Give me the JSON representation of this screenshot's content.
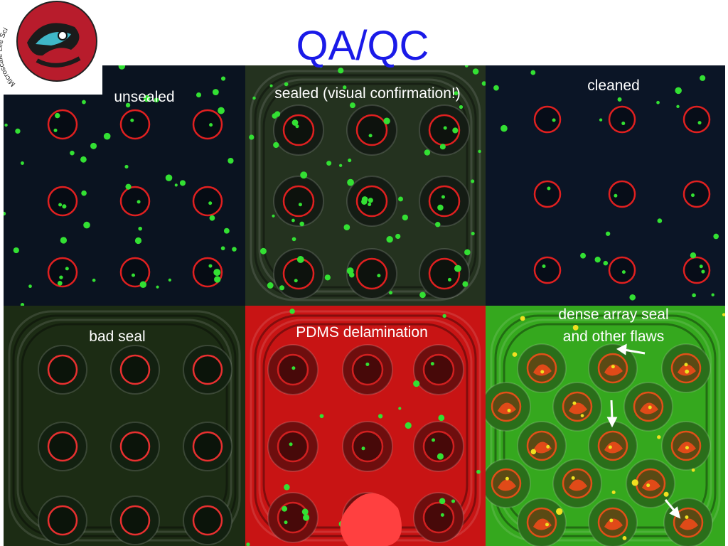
{
  "header": {
    "title": "QA/QC",
    "logo_text": "Microscale Life Sciences Center"
  },
  "panels": [
    {
      "label": "unsealed"
    },
    {
      "label": "sealed (visual confirmation!)"
    },
    {
      "label": "cleaned"
    },
    {
      "label": "bad seal"
    },
    {
      "label": "PDMS delamination"
    },
    {
      "label_lines": [
        "dense array seal",
        "and other flaws"
      ]
    }
  ]
}
